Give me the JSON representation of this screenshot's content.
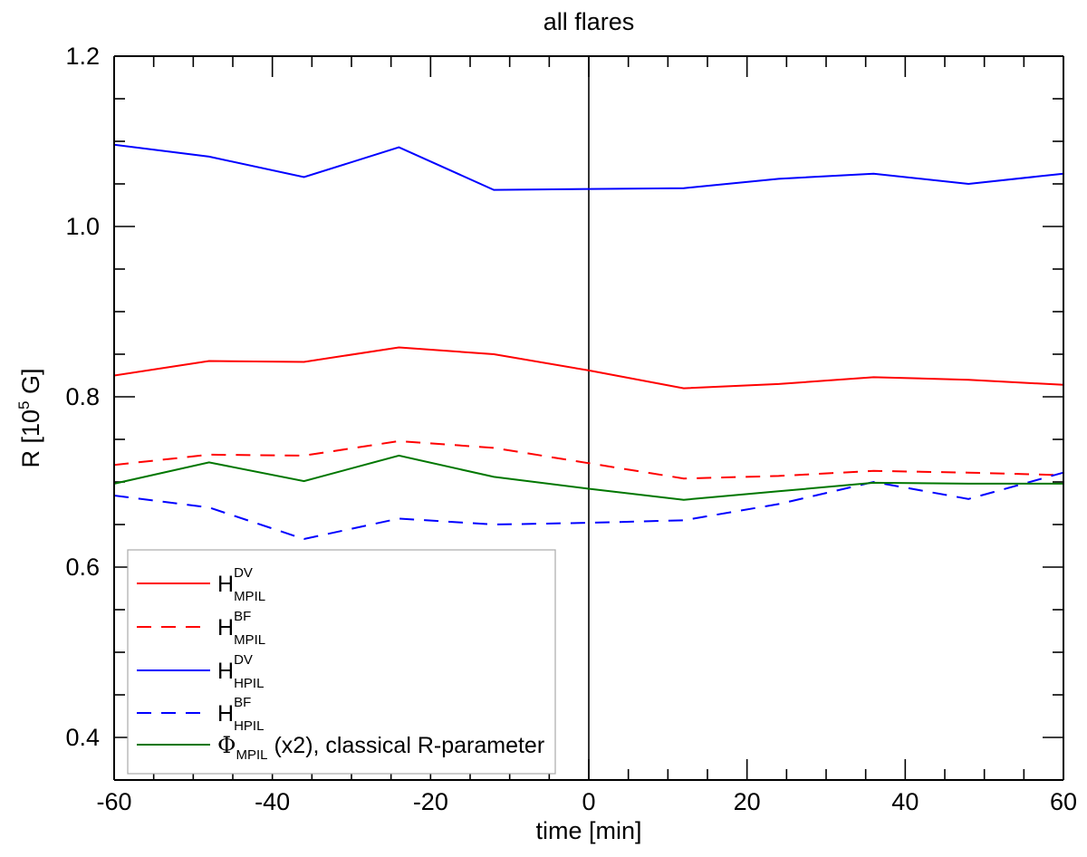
{
  "chart_data": {
    "type": "line",
    "title": "all flares",
    "xlabel": "time [min]",
    "ylabel": {
      "base": "R [10",
      "sup": "5",
      "tail": " G]"
    },
    "xlim": [
      -60,
      60
    ],
    "ylim": [
      0.35,
      1.2
    ],
    "x_ticks": [
      -60,
      -40,
      -20,
      0,
      20,
      40,
      60
    ],
    "x_tick_labels": [
      "-60",
      "-40",
      "-20",
      "0",
      "20",
      "40",
      "60"
    ],
    "x_minor_step": 5,
    "y_ticks": [
      0.4,
      0.6,
      0.8,
      1.0,
      1.2
    ],
    "y_tick_labels": [
      "0.4",
      "0.6",
      "0.8",
      "1.0",
      "1.2"
    ],
    "y_minor_step": 0.05,
    "vline_x": 0,
    "grid": false,
    "legend_position": "bottom-left",
    "series": [
      {
        "legend": {
          "main": "H",
          "sup": "DV",
          "sub": "MPIL",
          "tail": ""
        },
        "color": "#ff0000",
        "dash": "solid",
        "x": [
          -60,
          -48,
          -36,
          -24,
          -12,
          0,
          12,
          24,
          36,
          48,
          60
        ],
        "y": [
          0.825,
          0.842,
          0.841,
          0.858,
          0.85,
          0.831,
          0.81,
          0.815,
          0.823,
          0.82,
          0.814
        ]
      },
      {
        "legend": {
          "main": "H",
          "sup": "BF",
          "sub": "MPIL",
          "tail": ""
        },
        "color": "#ff0000",
        "dash": "dashed",
        "x": [
          -60,
          -48,
          -36,
          -24,
          -12,
          0,
          12,
          24,
          36,
          48,
          60
        ],
        "y": [
          0.72,
          0.732,
          0.731,
          0.748,
          0.74,
          0.722,
          0.704,
          0.707,
          0.713,
          0.711,
          0.708
        ]
      },
      {
        "legend": {
          "main": "H",
          "sup": "DV",
          "sub": "HPIL",
          "tail": ""
        },
        "color": "#0000ff",
        "dash": "solid",
        "x": [
          -60,
          -48,
          -36,
          -24,
          -12,
          0,
          12,
          24,
          36,
          48,
          60
        ],
        "y": [
          1.096,
          1.082,
          1.058,
          1.093,
          1.043,
          1.044,
          1.045,
          1.056,
          1.062,
          1.05,
          1.062
        ]
      },
      {
        "legend": {
          "main": "H",
          "sup": "BF",
          "sub": "HPIL",
          "tail": ""
        },
        "color": "#0000ff",
        "dash": "dashed",
        "x": [
          -60,
          -48,
          -36,
          -24,
          -12,
          0,
          12,
          24,
          36,
          48,
          60
        ],
        "y": [
          0.684,
          0.67,
          0.633,
          0.657,
          0.65,
          0.652,
          0.655,
          0.674,
          0.7,
          0.68,
          0.711
        ]
      },
      {
        "legend": {
          "main": "Φ",
          "sup": "",
          "sub": "MPIL",
          "tail": " (x2), classical R-parameter"
        },
        "color": "#007700",
        "dash": "solid",
        "x": [
          -60,
          -48,
          -36,
          -24,
          -12,
          0,
          12,
          24,
          36,
          48,
          60
        ],
        "y": [
          0.698,
          0.723,
          0.701,
          0.731,
          0.706,
          0.692,
          0.679,
          0.689,
          0.699,
          0.698,
          0.698
        ]
      }
    ]
  }
}
